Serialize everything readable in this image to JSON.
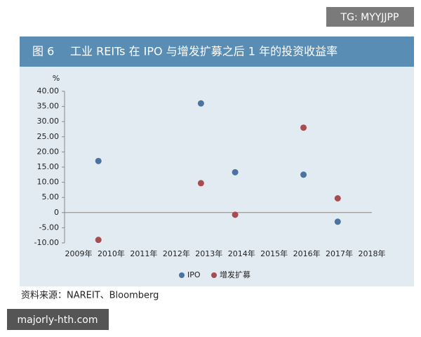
{
  "watermark_top": "TG: MYYJJPP",
  "watermark_bottom": "majorly-hth.com",
  "source": "资料来源：NAREIT、Bloomberg",
  "chart_data": {
    "type": "scatter",
    "figure_label": "图 6",
    "title": "工业 REITs 在 IPO 与增发扩募之后 1 年的投资收益率",
    "y_unit": "%",
    "categories": [
      "2009年",
      "2010年",
      "2011年",
      "2012年",
      "2013年",
      "2014年",
      "2015年",
      "2016年",
      "2017年",
      "2018年"
    ],
    "series": [
      {
        "name": "IPO",
        "color": "#4a74a0",
        "values": [
          null,
          17.0,
          null,
          null,
          36.0,
          13.3,
          null,
          12.5,
          -3.0,
          null
        ]
      },
      {
        "name": "增发扩募",
        "color": "#a84c50",
        "values": [
          null,
          -9.0,
          null,
          null,
          9.7,
          -0.7,
          null,
          28.0,
          4.7,
          null
        ]
      }
    ],
    "ylim": [
      -10,
      40
    ],
    "yticks": [
      {
        "value": 40,
        "label": "40.00"
      },
      {
        "value": 35,
        "label": "35.00"
      },
      {
        "value": 30,
        "label": "30.00"
      },
      {
        "value": 25,
        "label": "25.00"
      },
      {
        "value": 20,
        "label": "20.00"
      },
      {
        "value": 15,
        "label": "15.00"
      },
      {
        "value": 10,
        "label": "10.00"
      },
      {
        "value": 5,
        "label": "5.00"
      },
      0,
      {
        "value": -5,
        "label": "-5.00"
      },
      {
        "value": -10,
        "label": "-10.00"
      }
    ],
    "legend": "bottom"
  }
}
